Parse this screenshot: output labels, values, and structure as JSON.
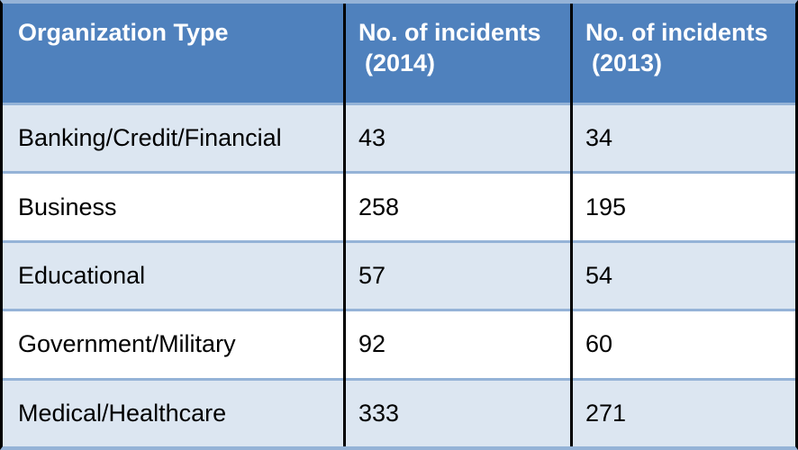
{
  "chart_data": {
    "type": "table",
    "columns": [
      "Organization Type",
      "No. of incidents (2014)",
      "No. of incidents (2013)"
    ],
    "rows": [
      [
        "Banking/Credit/Financial",
        43,
        34
      ],
      [
        "Business",
        258,
        195
      ],
      [
        "Educational",
        57,
        54
      ],
      [
        "Government/Military",
        92,
        60
      ],
      [
        "Medical/Healthcare",
        333,
        271
      ]
    ],
    "layout": {
      "header_position": "top",
      "alternating_row_shading": true,
      "grid": "black vertical dividers, light blue horizontal separators"
    }
  },
  "header": {
    "col1": "Organization Type",
    "col2_line1": "No. of incidents",
    "col2_line2": "(2014)",
    "col3_line1": "No. of incidents",
    "col3_line2": "(2013)"
  },
  "colors": {
    "header_bg": "#4F81BD",
    "header_text": "#FFFFFF",
    "row_alt_bg": "#DCE6F1",
    "row_bg": "#FFFFFF",
    "row_separator": "#95B3D7",
    "column_divider": "#000000",
    "body_text": "#000000"
  }
}
